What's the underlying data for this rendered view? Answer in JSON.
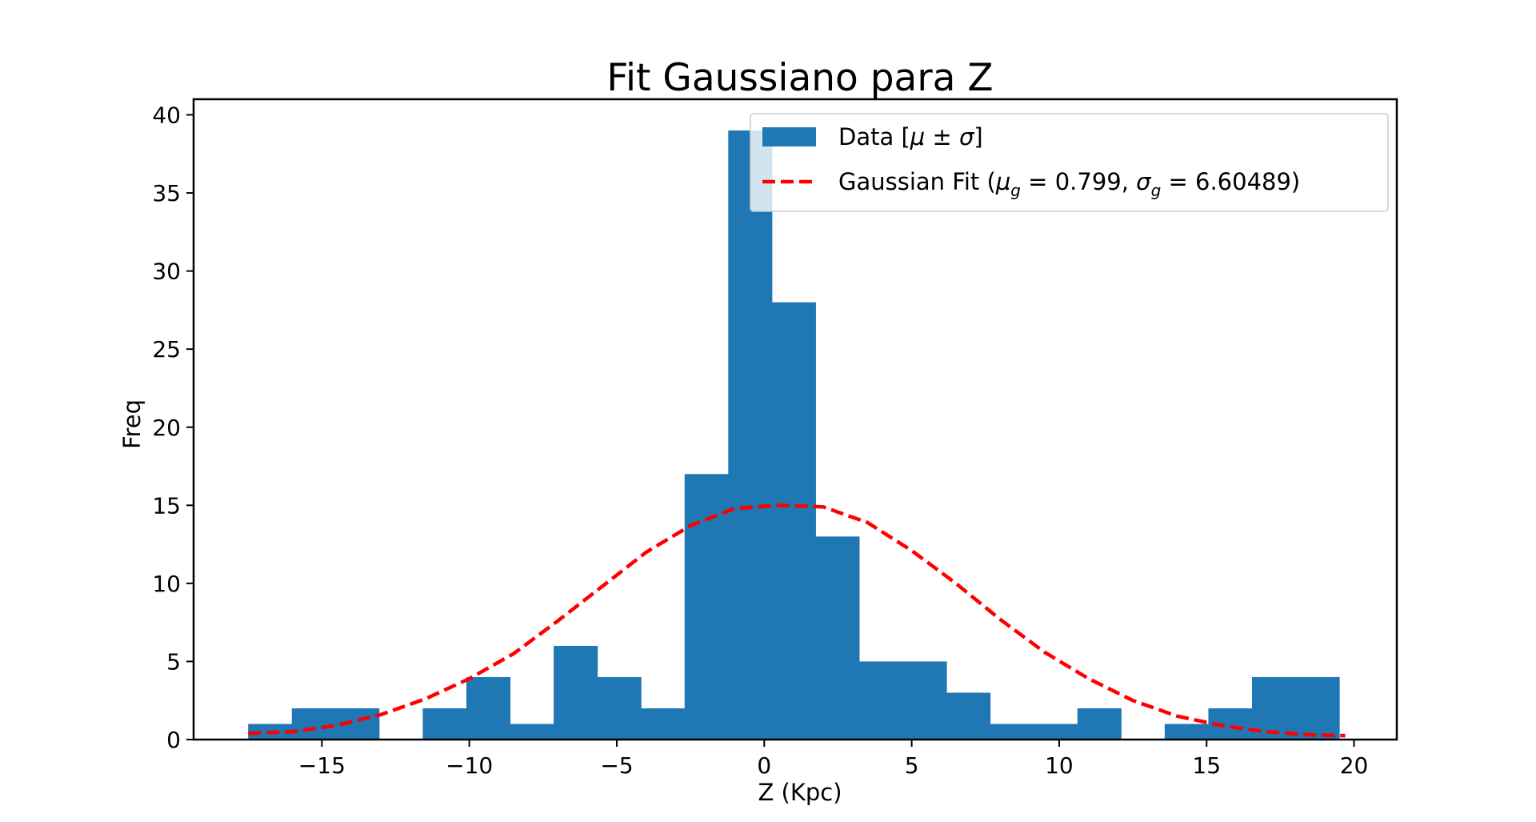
{
  "chart_data": {
    "type": "bar",
    "title": "Fit Gaussiano para Z",
    "xlabel": "Z (Kpc)",
    "ylabel": "Freq",
    "xlim": [
      -19.35,
      21.45
    ],
    "ylim": [
      0,
      41
    ],
    "xticks": [
      -15,
      -10,
      -5,
      0,
      5,
      10,
      15,
      20
    ],
    "xtick_labels": [
      "−15",
      "−10",
      "−5",
      "0",
      "5",
      "10",
      "15",
      "20"
    ],
    "yticks": [
      0,
      5,
      10,
      15,
      20,
      25,
      30,
      35,
      40
    ],
    "ytick_labels": [
      "0",
      "5",
      "10",
      "15",
      "20",
      "25",
      "30",
      "35",
      "40"
    ],
    "grid": false,
    "legend_position": "top-right",
    "histogram": {
      "name": "Data [μ ± σ]",
      "color": "#1f77b4",
      "bin_start": -17.5,
      "bin_width": 1.48,
      "counts": [
        1,
        2,
        2,
        0,
        2,
        4,
        1,
        6,
        4,
        2,
        17,
        39,
        28,
        13,
        5,
        5,
        3,
        1,
        1,
        2,
        0,
        1,
        2,
        4,
        4
      ]
    },
    "fit": {
      "name": "Gaussian Fit (μ_g = 0.799, σ_g = 6.60489)",
      "color": "#ff0000",
      "style": "dashed",
      "x": [
        -17.5,
        -16.0,
        -14.5,
        -13.0,
        -11.5,
        -10.0,
        -8.5,
        -7.0,
        -5.5,
        -4.0,
        -2.5,
        -1.0,
        0.5,
        2.0,
        3.5,
        5.0,
        6.5,
        8.0,
        9.5,
        11.0,
        12.5,
        14.0,
        15.5,
        17.0,
        18.5,
        19.7
      ],
      "y": [
        0.4,
        0.5,
        0.9,
        1.6,
        2.6,
        3.9,
        5.5,
        7.6,
        9.8,
        12.0,
        13.7,
        14.8,
        15.0,
        14.9,
        13.9,
        12.1,
        10.0,
        7.7,
        5.6,
        3.9,
        2.5,
        1.5,
        0.9,
        0.5,
        0.3,
        0.25
      ]
    },
    "legend": {
      "data_label": "Data [",
      "data_mu": "μ",
      "data_pm": " ± ",
      "data_sigma": "σ",
      "data_close": "]",
      "fit_prefix": "Gaussian Fit (",
      "fit_mu": "μ",
      "fit_g": "g",
      "fit_mid": " = 0.799, ",
      "fit_sigma": "σ",
      "fit_g2": "g",
      "fit_suffix": " = 6.60489)"
    }
  }
}
